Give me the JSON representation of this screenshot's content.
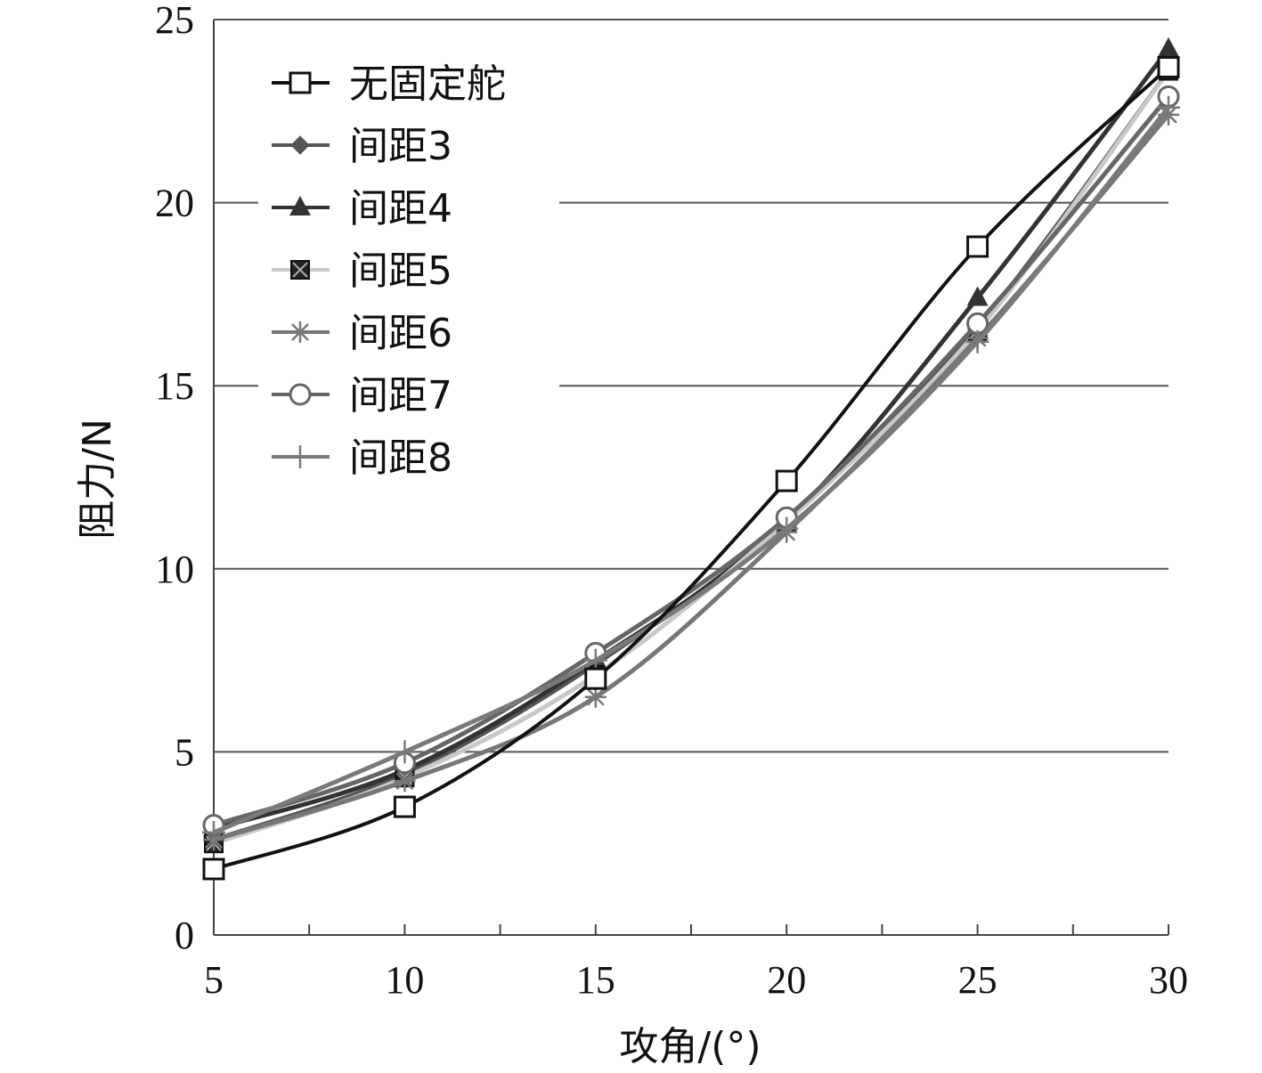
{
  "chart_data": {
    "type": "line",
    "title": "",
    "xlabel": "攻角/(°)",
    "ylabel": "阻力/N",
    "x": [
      5,
      10,
      15,
      20,
      25,
      30
    ],
    "xlim": [
      5,
      30
    ],
    "ylim": [
      0,
      25
    ],
    "xticks": [
      "5",
      "10",
      "15",
      "20",
      "25",
      "30"
    ],
    "yticks": [
      "0",
      "5",
      "10",
      "15",
      "20",
      "25"
    ],
    "grid": "horizontal",
    "legend_position": "top-left",
    "series": [
      {
        "name": "无固定舵",
        "values": [
          1.8,
          3.5,
          7.0,
          12.4,
          18.8,
          23.7
        ],
        "color": "#111111",
        "marker": "square-open"
      },
      {
        "name": "间距3",
        "values": [
          2.6,
          4.4,
          7.4,
          11.3,
          16.6,
          23.6
        ],
        "color": "#555555",
        "marker": "diamond"
      },
      {
        "name": "间距4",
        "values": [
          2.9,
          4.5,
          7.5,
          11.3,
          17.4,
          24.2
        ],
        "color": "#333333",
        "marker": "triangle"
      },
      {
        "name": "间距5",
        "values": [
          2.5,
          4.3,
          7.1,
          11.3,
          16.5,
          23.6
        ],
        "color": "#c8c8c8",
        "marker": "square-x"
      },
      {
        "name": "间距6",
        "values": [
          2.6,
          4.2,
          6.5,
          11.0,
          16.3,
          22.4
        ],
        "color": "#777777",
        "marker": "asterisk"
      },
      {
        "name": "间距7",
        "values": [
          3.0,
          4.7,
          7.7,
          11.4,
          16.7,
          22.9
        ],
        "color": "#666666",
        "marker": "circle-open"
      },
      {
        "name": "间距8",
        "values": [
          2.8,
          5.0,
          7.5,
          11.1,
          16.2,
          22.6
        ],
        "color": "#7a7a7a",
        "marker": "plus"
      }
    ]
  }
}
